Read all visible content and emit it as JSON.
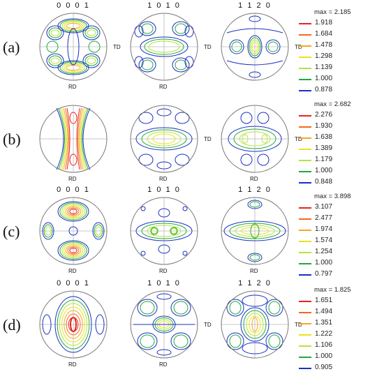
{
  "rows": [
    {
      "label": "(a)",
      "titles": [
        "0 0 0 1",
        "1 0 1 0",
        "1 1 2 0"
      ],
      "legend": {
        "max": "max = 2.185",
        "levels": [
          "1.918",
          "1.684",
          "1.478",
          "1.298",
          "1.139",
          "1.000",
          "0.878"
        ]
      }
    },
    {
      "label": "(b)",
      "titles": [
        "",
        "",
        ""
      ],
      "legend": {
        "max": "max = 2.682",
        "levels": [
          "2.276",
          "1.930",
          "1.638",
          "1.389",
          "1.179",
          "1.000",
          "0.848"
        ]
      }
    },
    {
      "label": "(c)",
      "titles": [
        "0 0 0 1",
        "1 0 1 0",
        "1 1 2 0"
      ],
      "legend": {
        "max": "max = 3.898",
        "levels": [
          "3.107",
          "2.477",
          "1.974",
          "1.574",
          "1.254",
          "1.000",
          "0.797"
        ]
      }
    },
    {
      "label": "(d)",
      "titles": [
        "0 0 0 1",
        "1 0 1 0",
        "1 1 2 0"
      ],
      "legend": {
        "max": "max = 1.825",
        "levels": [
          "1.651",
          "1.494",
          "1.351",
          "1.222",
          "1.106",
          "1.000",
          "0.905"
        ]
      }
    }
  ],
  "axis_labels": {
    "td": "TD",
    "rd": "RD"
  },
  "level_colors": [
    "#e8231d",
    "#f26a1b",
    "#f6a623",
    "#e9e31c",
    "#b7e33a",
    "#21a939",
    "#1a2fc4"
  ]
}
